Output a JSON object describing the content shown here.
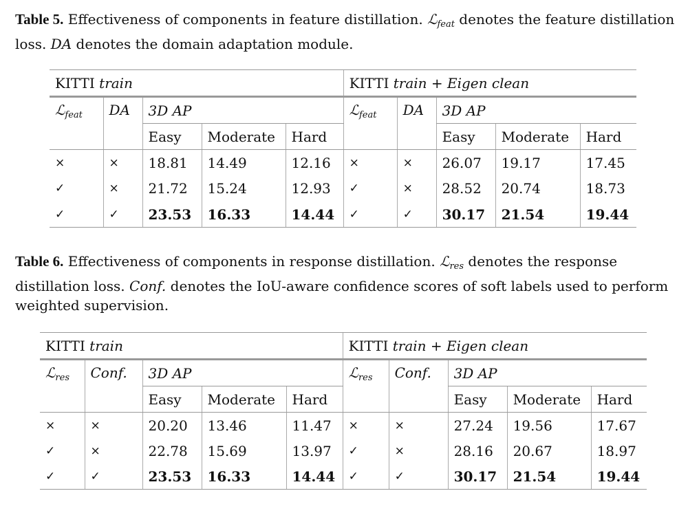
{
  "tables": [
    {
      "label": "Table 5.",
      "caption": [
        {
          "t": " Effectiveness of components in feature distillation. "
        },
        {
          "t": "ℒ",
          "sub": "feat",
          "math": true
        },
        {
          "t": " denotes the feature distillation loss. "
        },
        {
          "t": "DA",
          "math": true
        },
        {
          "t": " denotes the domain adaptation module."
        }
      ],
      "groups": [
        {
          "name": "KITTI",
          "italic": "train"
        },
        {
          "name": "KITTI",
          "italic": "train + Eigen clean"
        }
      ],
      "col_a": {
        "t": "ℒ",
        "sub": "feat"
      },
      "col_b": {
        "t": "DA"
      },
      "metric": "3D AP",
      "levels": [
        "Easy",
        "Moderate",
        "Hard"
      ],
      "rows": [
        {
          "left": [
            "×",
            "×",
            "18.81",
            "14.49",
            "12.16"
          ],
          "right": [
            "×",
            "×",
            "26.07",
            "19.17",
            "17.45"
          ],
          "bold": false
        },
        {
          "left": [
            "✓",
            "×",
            "21.72",
            "15.24",
            "12.93"
          ],
          "right": [
            "✓",
            "×",
            "28.52",
            "20.74",
            "18.73"
          ],
          "bold": false
        },
        {
          "left": [
            "✓",
            "✓",
            "23.53",
            "16.33",
            "14.44"
          ],
          "right": [
            "✓",
            "✓",
            "30.17",
            "21.54",
            "19.44"
          ],
          "bold": true
        }
      ]
    },
    {
      "label": "Table 6.",
      "caption": [
        {
          "t": " Effectiveness of components in response distillation. "
        },
        {
          "t": "ℒ",
          "sub": "res",
          "math": true
        },
        {
          "t": " denotes the response distillation loss. "
        },
        {
          "t": "Conf.",
          "math": true
        },
        {
          "t": " denotes the IoU-aware confidence scores of soft labels used to perform weighted supervision."
        }
      ],
      "groups": [
        {
          "name": "KITTI",
          "italic": "train"
        },
        {
          "name": "KITTI",
          "italic": "train + Eigen clean"
        }
      ],
      "col_a": {
        "t": "ℒ",
        "sub": "res"
      },
      "col_b": {
        "t": "Conf."
      },
      "metric": "3D AP",
      "levels": [
        "Easy",
        "Moderate",
        "Hard"
      ],
      "rows": [
        {
          "left": [
            "×",
            "×",
            "20.20",
            "13.46",
            "11.47"
          ],
          "right": [
            "×",
            "×",
            "27.24",
            "19.56",
            "17.67"
          ],
          "bold": false
        },
        {
          "left": [
            "✓",
            "×",
            "22.78",
            "15.69",
            "13.97"
          ],
          "right": [
            "✓",
            "×",
            "28.16",
            "20.67",
            "18.97"
          ],
          "bold": false
        },
        {
          "left": [
            "✓",
            "✓",
            "23.53",
            "16.33",
            "14.44"
          ],
          "right": [
            "✓",
            "✓",
            "30.17",
            "21.54",
            "19.44"
          ],
          "bold": true
        }
      ]
    }
  ]
}
